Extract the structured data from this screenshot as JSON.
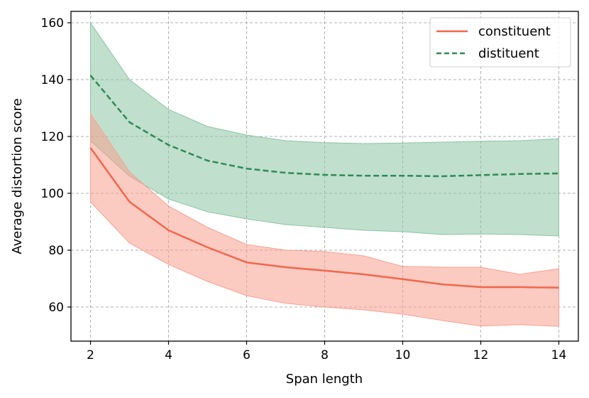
{
  "chart_data": {
    "type": "line",
    "xlabel": "Span length",
    "ylabel": "Average distortion score",
    "xlim": [
      1.5,
      14.5
    ],
    "ylim": [
      48,
      164
    ],
    "xticks": [
      "2",
      "4",
      "6",
      "8",
      "10",
      "12",
      "14"
    ],
    "yticks": [
      "60",
      "80",
      "100",
      "120",
      "140",
      "160"
    ],
    "grid": true,
    "legend_position": "top-right",
    "x": [
      2,
      3,
      4,
      5,
      6,
      7,
      8,
      9,
      10,
      11,
      12,
      13,
      14
    ],
    "series": [
      {
        "name": "constituent",
        "style": "solid",
        "color": "#f4664a",
        "fill_color": "#f8a090",
        "values": [
          116,
          97,
          87,
          81,
          75.7,
          74,
          72.8,
          71.5,
          69.8,
          68,
          67,
          67,
          66.8
        ],
        "lower": [
          97,
          82.5,
          75,
          69,
          64,
          61.3,
          60,
          59,
          57.5,
          55.3,
          53.3,
          53.8,
          53.2
        ],
        "upper": [
          128,
          107.5,
          95.5,
          88,
          82,
          80,
          79.5,
          78,
          74.3,
          74,
          74,
          71.5,
          73.5
        ]
      },
      {
        "name": "distituent",
        "style": "dashed",
        "color": "#2e8b57",
        "fill_color": "#8cc5a3",
        "values": [
          141.5,
          125,
          117,
          111.5,
          108.7,
          107.2,
          106.5,
          106.2,
          106.2,
          106,
          106.4,
          106.8,
          107
        ],
        "lower": [
          118.5,
          106,
          98,
          93.5,
          91,
          89,
          88,
          87,
          86.5,
          85.5,
          85.7,
          85.5,
          85
        ],
        "upper": [
          160,
          140,
          129.5,
          123.5,
          120.5,
          118.5,
          117.8,
          117.5,
          117.7,
          118,
          118.3,
          118.5,
          119.2
        ]
      }
    ]
  }
}
